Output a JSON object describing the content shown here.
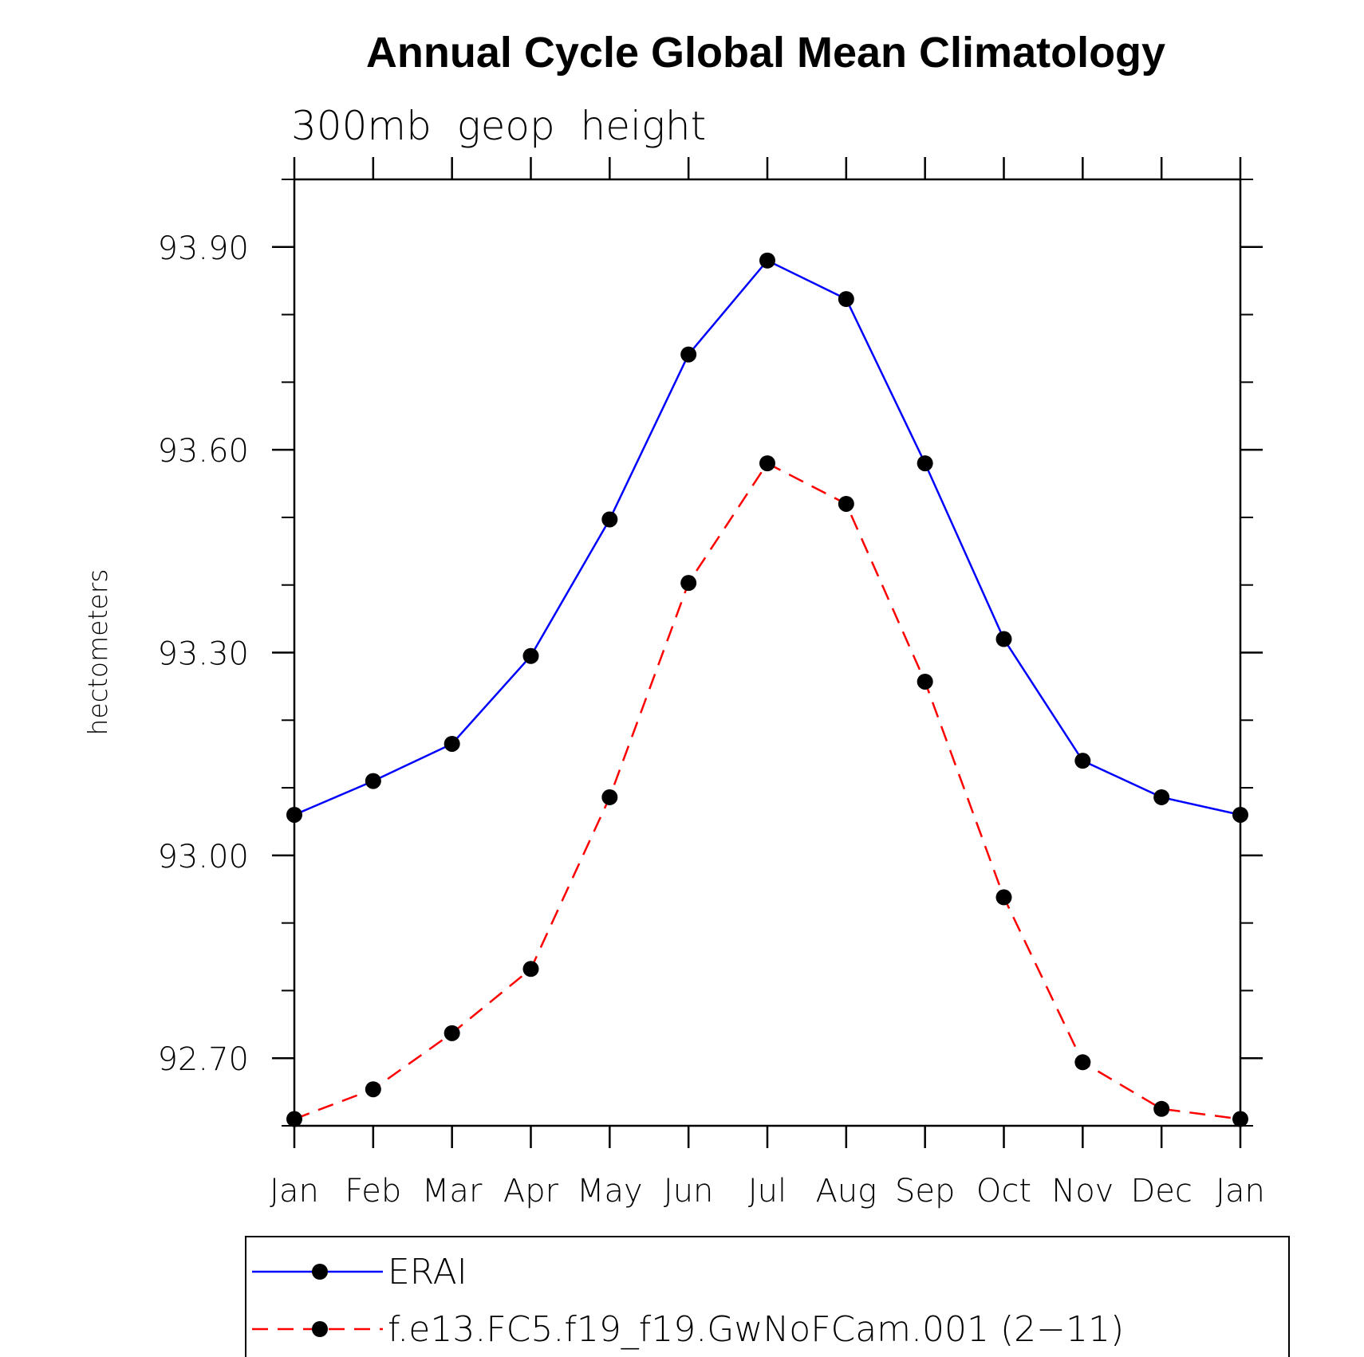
{
  "chart_data": {
    "type": "line",
    "title": "Annual Cycle Global Mean Climatology",
    "subtitle": "300mb  geop  height",
    "xlabel": "",
    "ylabel": "hectometers",
    "categories": [
      "Jan",
      "Feb",
      "Mar",
      "Apr",
      "May",
      "Jun",
      "Jul",
      "Aug",
      "Sep",
      "Oct",
      "Nov",
      "Dec",
      "Jan"
    ],
    "yticks": [
      92.7,
      93.0,
      93.3,
      93.6,
      93.9
    ],
    "ytick_labels": [
      "92.70",
      "93.00",
      "93.30",
      "93.60",
      "93.90"
    ],
    "ylim": [
      92.6,
      94.0
    ],
    "series": [
      {
        "name": "ERAI",
        "color": "#0000ff",
        "dashed": false,
        "values": [
          93.06,
          93.11,
          93.165,
          93.295,
          93.497,
          93.741,
          93.88,
          93.823,
          93.58,
          93.32,
          93.14,
          93.086,
          93.06
        ]
      },
      {
        "name": "f.e13.FC5.f19_f19.GwNoFCam.001 (2-11)",
        "color": "#ff0000",
        "dashed": true,
        "values": [
          92.61,
          92.654,
          92.737,
          92.832,
          93.086,
          93.403,
          93.58,
          93.52,
          93.257,
          92.938,
          92.694,
          92.625,
          92.61
        ]
      }
    ],
    "legend": [
      "ERAI",
      "f.e13.FC5.f19_f19.GwNoFCam.001 (2−11)"
    ],
    "legend_position": "bottom",
    "grid": false
  }
}
